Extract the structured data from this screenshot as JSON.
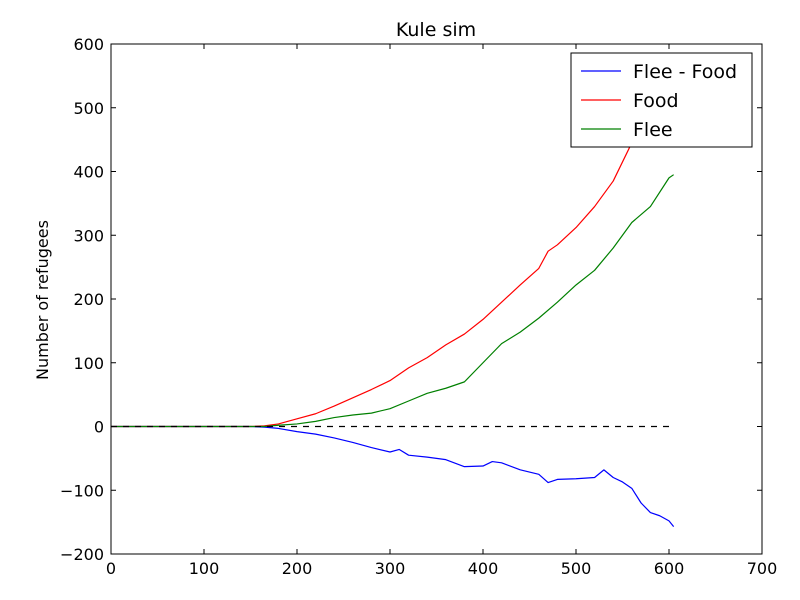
{
  "chart_data": {
    "type": "line",
    "title": "Kule sim",
    "xlabel": "",
    "ylabel": "Number of refugees",
    "xlim": [
      0,
      700
    ],
    "ylim": [
      -200,
      600
    ],
    "xticks": [
      0,
      100,
      200,
      300,
      400,
      500,
      600,
      700
    ],
    "yticks": [
      -200,
      -100,
      0,
      100,
      200,
      300,
      400,
      500,
      600
    ],
    "xtick_labels": [
      "0",
      "100",
      "200",
      "300",
      "400",
      "500",
      "600",
      "700"
    ],
    "ytick_labels": [
      "−200",
      "−100",
      "0",
      "100",
      "200",
      "300",
      "400",
      "500",
      "600"
    ],
    "grid": false,
    "legend_position": "top-right",
    "series": [
      {
        "name": "Flee - Food",
        "color": "#0000ff",
        "style": "solid",
        "x": [
          0,
          150,
          165,
          180,
          200,
          220,
          240,
          260,
          280,
          300,
          310,
          320,
          340,
          360,
          380,
          400,
          410,
          420,
          440,
          460,
          470,
          480,
          500,
          520,
          530,
          540,
          550,
          560,
          570,
          580,
          590,
          600,
          605
        ],
        "y": [
          0,
          0,
          -1,
          -3,
          -8,
          -12,
          -18,
          -25,
          -33,
          -40,
          -36,
          -45,
          -48,
          -52,
          -63,
          -62,
          -55,
          -57,
          -68,
          -75,
          -88,
          -83,
          -82,
          -80,
          -68,
          -80,
          -87,
          -97,
          -120,
          -135,
          -140,
          -148,
          -157
        ]
      },
      {
        "name": "Food",
        "color": "#ff0000",
        "style": "solid",
        "x": [
          0,
          150,
          165,
          180,
          200,
          220,
          240,
          260,
          280,
          300,
          320,
          340,
          360,
          380,
          400,
          420,
          440,
          460,
          470,
          480,
          500,
          520,
          540,
          560,
          570
        ],
        "y": [
          0,
          0,
          1,
          4,
          12,
          20,
          32,
          45,
          58,
          72,
          92,
          108,
          128,
          145,
          168,
          195,
          222,
          248,
          275,
          285,
          312,
          345,
          385,
          445,
          470
        ]
      },
      {
        "name": "Flee",
        "color": "#008000",
        "style": "solid",
        "x": [
          0,
          150,
          165,
          180,
          200,
          220,
          240,
          260,
          280,
          300,
          320,
          340,
          360,
          380,
          400,
          420,
          440,
          460,
          480,
          500,
          520,
          540,
          560,
          580,
          600,
          605
        ],
        "y": [
          0,
          0,
          0,
          2,
          4,
          8,
          14,
          18,
          21,
          28,
          40,
          52,
          60,
          70,
          100,
          130,
          148,
          170,
          195,
          222,
          245,
          280,
          320,
          345,
          390,
          395
        ]
      },
      {
        "name": "",
        "color": "#000000",
        "style": "dashed",
        "x": [
          0,
          600
        ],
        "y": [
          0,
          0
        ]
      }
    ]
  }
}
